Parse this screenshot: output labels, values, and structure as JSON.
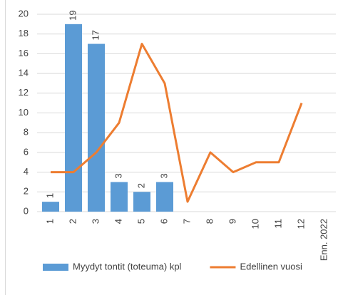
{
  "chart_data": {
    "type": "combo",
    "categories": [
      "1",
      "2",
      "3",
      "4",
      "5",
      "6",
      "7",
      "8",
      "9",
      "10",
      "11",
      "12",
      "Enn. 2022"
    ],
    "series": [
      {
        "name": "Myydyt tontit (toteuma) kpl",
        "type": "bar",
        "color": "#5b9bd5",
        "values": [
          1,
          19,
          17,
          3,
          2,
          3,
          null,
          null,
          null,
          null,
          null,
          null,
          null
        ]
      },
      {
        "name": "Edellinen vuosi",
        "type": "line",
        "color": "#ed7d31",
        "values": [
          4,
          4,
          6,
          9,
          17,
          13,
          1,
          6,
          4,
          5,
          5,
          11,
          null
        ]
      }
    ],
    "ylim": [
      0,
      20
    ],
    "yticks": [
      0,
      2,
      4,
      6,
      8,
      10,
      12,
      14,
      16,
      18,
      20
    ],
    "grid": true,
    "legend": "bottom"
  }
}
